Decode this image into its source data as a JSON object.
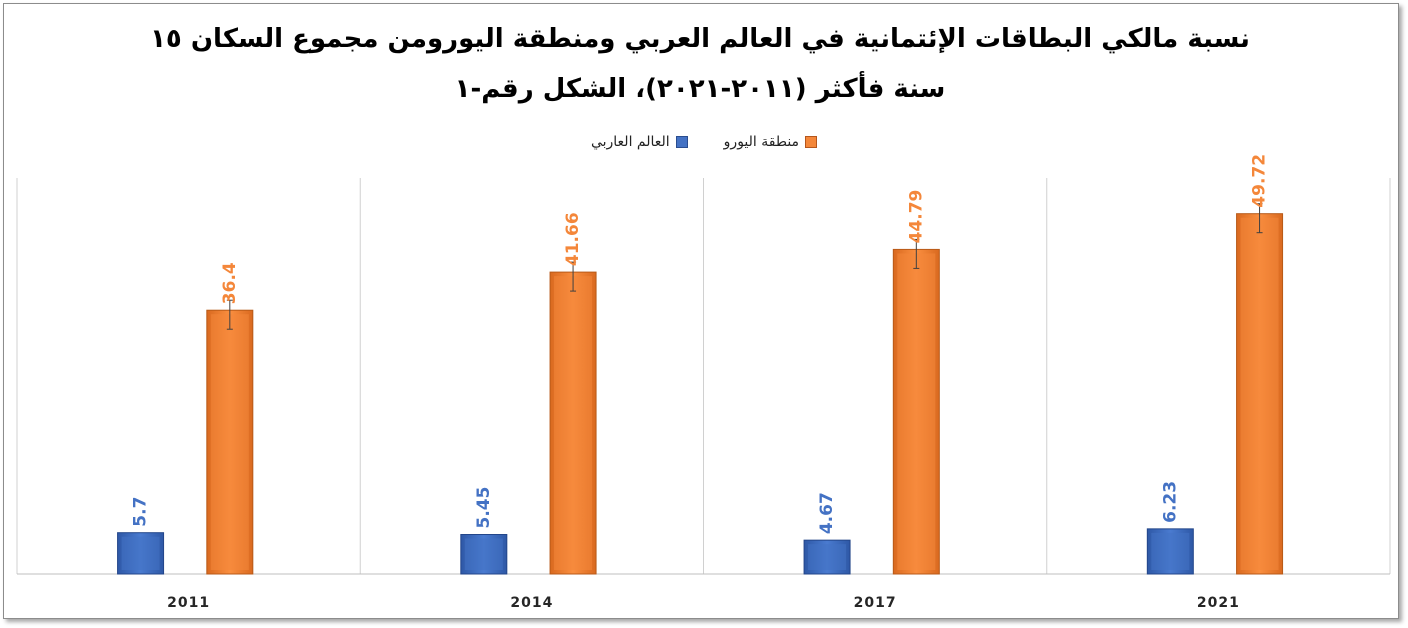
{
  "chart_data": {
    "type": "bar",
    "title": "نسبة مالكي البطاقات الإئتمانية في العالم العربي ومنطقة اليورومن مجموع السكان ١٥ سنة فأكثر (٢٠١١-٢٠٢١)، الشكل رقم-١",
    "xlabel": "",
    "ylabel": "",
    "categories": [
      "2011",
      "2014",
      "2017",
      "2021"
    ],
    "series": [
      {
        "name": "العالم العاربي",
        "color": "#4472c4",
        "values": [
          5.7,
          5.45,
          4.67,
          6.23
        ],
        "labels": [
          "5.7",
          "5.45",
          "4.67",
          "6.23"
        ]
      },
      {
        "name": "منطقة اليورو",
        "color": "#f4873a",
        "values": [
          36.4,
          41.66,
          44.79,
          49.72
        ],
        "labels": [
          "36.4",
          "41.66",
          "44.79",
          "49.72"
        ]
      }
    ],
    "ylim": [
      0,
      60
    ],
    "grid": false,
    "legend": "top-center",
    "error_bars": true
  }
}
